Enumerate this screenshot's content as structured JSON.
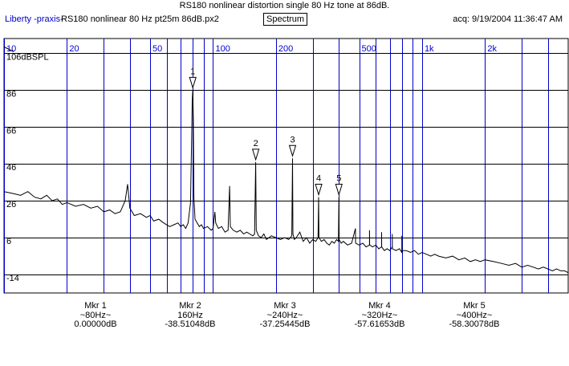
{
  "window": {
    "title": "RS180 nonlinear distortion single 80 Hz tone at 86dB.",
    "app_label": "Liberty -praxis-",
    "file_label": "RS180 nonlinear 80 Hz pt25m 86dB.px2",
    "mode_button": "Spectrum",
    "acq": "acq: 9/19/2004 11:36:47 AM"
  },
  "colors": {
    "grid_blue": "#0000cc",
    "trace": "#000000",
    "background": "#ffffff"
  },
  "chart_data": {
    "type": "line",
    "x_scale": "log",
    "xlim": [
      10,
      5000
    ],
    "ylim": [
      -24,
      114
    ],
    "x_tick_labels": [
      {
        "value": 10,
        "label": "10"
      },
      {
        "value": 20,
        "label": "20"
      },
      {
        "value": 50,
        "label": "50"
      },
      {
        "value": 100,
        "label": "100"
      },
      {
        "value": 200,
        "label": "200"
      },
      {
        "value": 500,
        "label": "500"
      },
      {
        "value": 1000,
        "label": "1k"
      },
      {
        "value": 2000,
        "label": "2k"
      }
    ],
    "y_tick_labels": [
      {
        "value": 106,
        "label": "106dBSPL"
      },
      {
        "value": 86,
        "label": "86"
      },
      {
        "value": 66,
        "label": "66"
      },
      {
        "value": 46,
        "label": "46"
      },
      {
        "value": 26,
        "label": "26"
      },
      {
        "value": 6,
        "label": "6"
      },
      {
        "value": -14,
        "label": "-14"
      }
    ],
    "x_gridlines": [
      10,
      20,
      30,
      40,
      50,
      60,
      70,
      80,
      90,
      100,
      200,
      300,
      400,
      500,
      600,
      700,
      800,
      900,
      1000,
      2000,
      3000,
      4000
    ],
    "y_gridlines": [
      106,
      86,
      66,
      46,
      26,
      6,
      -14
    ],
    "grid": true,
    "series": [
      {
        "points": [
          [
            10,
            31
          ],
          [
            11,
            30
          ],
          [
            12,
            29
          ],
          [
            13,
            31
          ],
          [
            14,
            28
          ],
          [
            15,
            27
          ],
          [
            16,
            29
          ],
          [
            17,
            26
          ],
          [
            18,
            27
          ],
          [
            19,
            24
          ],
          [
            20,
            25
          ],
          [
            22,
            23
          ],
          [
            24,
            24
          ],
          [
            26,
            22
          ],
          [
            28,
            23
          ],
          [
            30,
            20
          ],
          [
            32,
            21
          ],
          [
            34,
            19
          ],
          [
            36,
            20
          ],
          [
            38,
            26
          ],
          [
            39,
            35
          ],
          [
            40,
            22
          ],
          [
            42,
            18
          ],
          [
            45,
            19
          ],
          [
            48,
            17
          ],
          [
            50,
            18
          ],
          [
            52,
            15
          ],
          [
            55,
            16
          ],
          [
            58,
            14
          ],
          [
            62,
            12
          ],
          [
            65,
            13
          ],
          [
            68,
            14
          ],
          [
            70,
            12
          ],
          [
            72,
            13
          ],
          [
            74,
            11
          ],
          [
            76,
            14
          ],
          [
            78,
            25
          ],
          [
            79,
            60
          ],
          [
            79.5,
            80
          ],
          [
            80,
            86
          ],
          [
            80.5,
            70
          ],
          [
            81,
            28
          ],
          [
            82,
            16
          ],
          [
            84,
            14
          ],
          [
            86,
            12
          ],
          [
            88,
            13
          ],
          [
            90,
            11
          ],
          [
            94,
            12
          ],
          [
            98,
            10
          ],
          [
            100,
            11
          ],
          [
            102,
            20
          ],
          [
            103,
            14
          ],
          [
            106,
            11
          ],
          [
            110,
            12
          ],
          [
            114,
            9
          ],
          [
            118,
            10
          ],
          [
            120,
            34
          ],
          [
            121,
            12
          ],
          [
            125,
            10
          ],
          [
            130,
            9
          ],
          [
            135,
            10
          ],
          [
            140,
            8
          ],
          [
            145,
            9
          ],
          [
            150,
            8
          ],
          [
            155,
            7
          ],
          [
            158,
            8
          ],
          [
            160,
            47
          ],
          [
            161,
            10
          ],
          [
            165,
            7
          ],
          [
            170,
            6
          ],
          [
            175,
            8
          ],
          [
            180,
            5
          ],
          [
            185,
            6
          ],
          [
            190,
            7
          ],
          [
            200,
            6
          ],
          [
            210,
            5
          ],
          [
            220,
            6
          ],
          [
            230,
            5
          ],
          [
            238,
            7
          ],
          [
            240,
            49
          ],
          [
            241,
            8
          ],
          [
            245,
            5
          ],
          [
            250,
            6
          ],
          [
            260,
            9
          ],
          [
            270,
            4
          ],
          [
            280,
            6
          ],
          [
            290,
            3
          ],
          [
            300,
            5
          ],
          [
            310,
            4
          ],
          [
            318,
            6
          ],
          [
            320,
            28
          ],
          [
            321,
            6
          ],
          [
            330,
            4
          ],
          [
            340,
            5
          ],
          [
            350,
            3
          ],
          [
            360,
            2
          ],
          [
            370,
            4
          ],
          [
            380,
            3
          ],
          [
            390,
            5
          ],
          [
            398,
            4
          ],
          [
            400,
            28
          ],
          [
            401,
            5
          ],
          [
            410,
            3
          ],
          [
            420,
            4
          ],
          [
            440,
            2
          ],
          [
            460,
            3
          ],
          [
            480,
            11
          ],
          [
            481,
            3
          ],
          [
            500,
            2
          ],
          [
            520,
            3
          ],
          [
            540,
            1
          ],
          [
            560,
            2
          ],
          [
            560,
            10
          ],
          [
            561,
            2
          ],
          [
            580,
            1
          ],
          [
            600,
            2
          ],
          [
            620,
            0
          ],
          [
            640,
            1
          ],
          [
            640,
            9
          ],
          [
            641,
            1
          ],
          [
            660,
            -1
          ],
          [
            680,
            0
          ],
          [
            700,
            -1
          ],
          [
            720,
            1
          ],
          [
            720,
            8
          ],
          [
            721,
            0
          ],
          [
            750,
            -1
          ],
          [
            780,
            0
          ],
          [
            800,
            -2
          ],
          [
            800,
            7
          ],
          [
            801,
            -1
          ],
          [
            840,
            -1
          ],
          [
            880,
            -2
          ],
          [
            920,
            -1
          ],
          [
            960,
            -3
          ],
          [
            1000,
            -2
          ],
          [
            1050,
            -3
          ],
          [
            1100,
            -4
          ],
          [
            1150,
            -3
          ],
          [
            1200,
            -4
          ],
          [
            1300,
            -5
          ],
          [
            1400,
            -4
          ],
          [
            1500,
            -6
          ],
          [
            1600,
            -5
          ],
          [
            1700,
            -7
          ],
          [
            1800,
            -6
          ],
          [
            1900,
            -7
          ],
          [
            2000,
            -6
          ],
          [
            2200,
            -7
          ],
          [
            2400,
            -8
          ],
          [
            2600,
            -9
          ],
          [
            2800,
            -8
          ],
          [
            3000,
            -10
          ],
          [
            3200,
            -9
          ],
          [
            3400,
            -10
          ],
          [
            3600,
            -11
          ],
          [
            3800,
            -10
          ],
          [
            4000,
            -11
          ],
          [
            4200,
            -12
          ],
          [
            4400,
            -11
          ],
          [
            4600,
            -12
          ],
          [
            4800,
            -12
          ],
          [
            5000,
            -13
          ]
        ]
      }
    ],
    "markers": [
      {
        "label": "1",
        "x": 80,
        "y": 86
      },
      {
        "label": "2",
        "x": 160,
        "y": 47
      },
      {
        "label": "3",
        "x": 240,
        "y": 49
      },
      {
        "label": "4",
        "x": 320,
        "y": 28
      },
      {
        "label": "5",
        "x": 400,
        "y": 28
      }
    ]
  },
  "marker_readouts": [
    {
      "name": "Mkr 1",
      "freq": "~80Hz~",
      "level": "0.00000dB"
    },
    {
      "name": "Mkr 2",
      "freq": "160Hz",
      "level": "-38.51048dB"
    },
    {
      "name": "Mkr 3",
      "freq": "~240Hz~",
      "level": "-37.25445dB"
    },
    {
      "name": "Mkr 4",
      "freq": "~320Hz~",
      "level": "-57.61653dB"
    },
    {
      "name": "Mkr 5",
      "freq": "~400Hz~",
      "level": "-58.30078dB"
    }
  ]
}
